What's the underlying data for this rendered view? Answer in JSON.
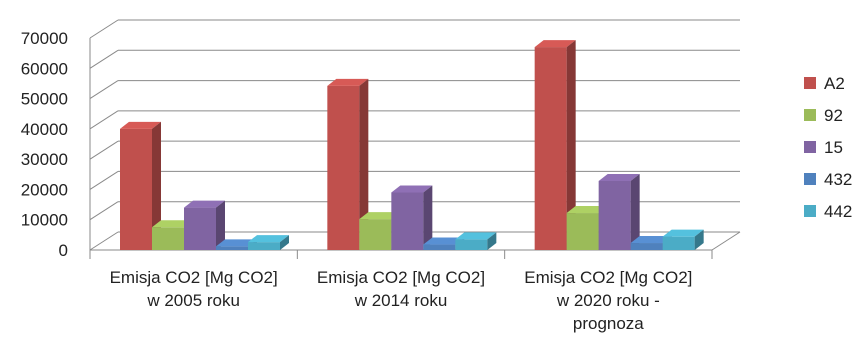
{
  "chart_data": {
    "type": "bar",
    "title": "",
    "xlabel": "",
    "ylabel": "",
    "ylim": [
      0,
      70000
    ],
    "yticks": [
      0,
      10000,
      20000,
      30000,
      40000,
      50000,
      60000,
      70000
    ],
    "grid": true,
    "legend_position": "right",
    "categories": [
      [
        "Emisja CO2 [Mg CO2]",
        "w 2005 roku"
      ],
      [
        "Emisja CO2 [Mg CO2]",
        "w 2014 roku"
      ],
      [
        "Emisja CO2 [Mg CO2]",
        "w 2020 roku -",
        "prognoza"
      ]
    ],
    "series": [
      {
        "name": "A2",
        "color": "#c0504d",
        "values": [
          40000,
          54200,
          67000
        ]
      },
      {
        "name": "92",
        "color": "#9bbb59",
        "values": [
          7500,
          10200,
          12200
        ]
      },
      {
        "name": "15",
        "color": "#8064a2",
        "values": [
          14000,
          19000,
          22800
        ]
      },
      {
        "name": "432",
        "color": "#4f81bd",
        "values": [
          1200,
          1800,
          2300
        ]
      },
      {
        "name": "442",
        "color": "#4bacc6",
        "values": [
          2600,
          3500,
          4400
        ]
      }
    ]
  }
}
